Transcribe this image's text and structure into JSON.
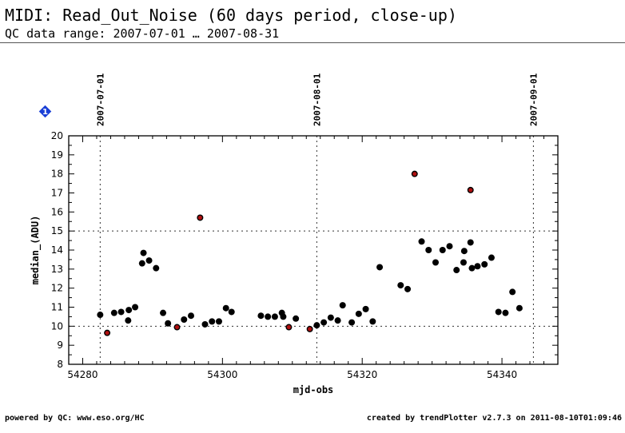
{
  "header": {
    "title": "MIDI: Read_Out_Noise (60 days period, close-up)",
    "subtitle": "QC data range: 2007-07-01 … 2007-08-31"
  },
  "footer": {
    "left": "powered by QC: www.eso.org/HC",
    "right": "created by trendPlotter v2.7.3 on 2011-08-10T01:09:46"
  },
  "chart_data": {
    "type": "scatter",
    "xlabel": "mjd-obs",
    "ylabel": "median_(ADU)",
    "xlim": [
      54278,
      54348
    ],
    "ylim": [
      8,
      20
    ],
    "x_ticks": [
      54280,
      54300,
      54320,
      54340
    ],
    "y_ticks": [
      8,
      9,
      10,
      11,
      12,
      13,
      14,
      15,
      16,
      17,
      18,
      19,
      20
    ],
    "reference_lines_y": [
      10,
      15
    ],
    "date_markers": [
      {
        "label": "2007-07-01",
        "x": 54282.5
      },
      {
        "label": "2007-08-01",
        "x": 54313.5
      },
      {
        "label": "2007-09-01",
        "x": 54344.5
      }
    ],
    "badge": "1",
    "colors": {
      "normal": "#000000",
      "outlier": "#b01010",
      "badge": "#1a3fd6"
    },
    "series": [
      {
        "points": [
          [
            54282.5,
            10.6
          ],
          [
            54284.5,
            10.7
          ],
          [
            54285.5,
            10.75
          ],
          [
            54286.5,
            10.3
          ],
          [
            54286.6,
            10.85
          ],
          [
            54287.5,
            11.0
          ],
          [
            54288.5,
            13.3
          ],
          [
            54288.7,
            13.85
          ],
          [
            54289.5,
            13.45
          ],
          [
            54290.5,
            13.05
          ],
          [
            54291.5,
            10.7
          ],
          [
            54292.2,
            10.15
          ],
          [
            54294.5,
            10.35
          ],
          [
            54295.5,
            10.55
          ],
          [
            54297.5,
            10.1
          ],
          [
            54298.5,
            10.25
          ],
          [
            54299.5,
            10.25
          ],
          [
            54300.5,
            10.95
          ],
          [
            54301.3,
            10.75
          ],
          [
            54305.5,
            10.55
          ],
          [
            54306.5,
            10.5
          ],
          [
            54307.5,
            10.5
          ],
          [
            54308.5,
            10.7
          ],
          [
            54308.7,
            10.5
          ],
          [
            54310.5,
            10.4
          ],
          [
            54313.5,
            10.05
          ],
          [
            54314.5,
            10.2
          ],
          [
            54315.5,
            10.45
          ],
          [
            54316.5,
            10.3
          ],
          [
            54317.2,
            11.1
          ],
          [
            54318.5,
            10.2
          ],
          [
            54319.5,
            10.65
          ],
          [
            54320.5,
            10.9
          ],
          [
            54321.5,
            10.25
          ],
          [
            54322.5,
            13.1
          ],
          [
            54325.5,
            12.15
          ],
          [
            54326.5,
            11.95
          ],
          [
            54328.5,
            14.45
          ],
          [
            54329.5,
            14.0
          ],
          [
            54330.5,
            13.35
          ],
          [
            54331.5,
            14.0
          ],
          [
            54332.5,
            14.2
          ],
          [
            54333.5,
            12.95
          ],
          [
            54334.5,
            13.35
          ],
          [
            54334.6,
            13.95
          ],
          [
            54335.5,
            14.4
          ],
          [
            54335.7,
            13.05
          ],
          [
            54336.5,
            13.15
          ],
          [
            54337.5,
            13.25
          ],
          [
            54338.5,
            13.6
          ],
          [
            54339.5,
            10.75
          ],
          [
            54340.5,
            10.7
          ],
          [
            54341.5,
            11.8
          ],
          [
            54342.5,
            10.95
          ]
        ]
      },
      {
        "points": [
          [
            54283.5,
            9.65
          ],
          [
            54293.5,
            9.95
          ],
          [
            54296.8,
            15.7
          ],
          [
            54309.5,
            9.95
          ],
          [
            54312.5,
            9.85
          ],
          [
            54327.5,
            18.0
          ],
          [
            54335.5,
            17.15
          ]
        ]
      }
    ]
  }
}
